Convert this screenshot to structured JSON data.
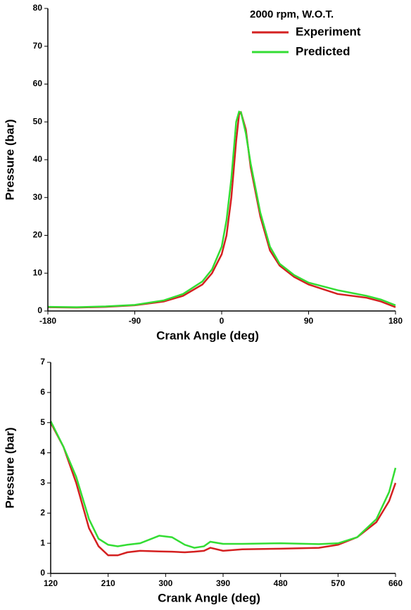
{
  "chart_data": [
    {
      "type": "line",
      "legend_title": "2000 rpm,  W.O.T.",
      "xlabel": "Crank Angle (deg)",
      "ylabel": "Pressure (bar)",
      "xlim": [
        -180,
        180
      ],
      "xticks": [
        -180,
        -90,
        0,
        90,
        180
      ],
      "ylim": [
        0,
        80
      ],
      "yticks": [
        0,
        10,
        20,
        30,
        40,
        50,
        60,
        70,
        80
      ],
      "x": [
        -180,
        -150,
        -120,
        -90,
        -60,
        -40,
        -20,
        -10,
        0,
        5,
        10,
        15,
        18,
        20,
        25,
        30,
        40,
        50,
        60,
        75,
        90,
        120,
        150,
        165,
        180
      ],
      "series": [
        {
          "name": "Experiment",
          "color": "#d42020",
          "values": [
            1,
            0.9,
            1.1,
            1.5,
            2.5,
            4,
            7,
            10,
            15,
            20,
            30,
            45,
            52,
            52.5,
            48,
            38,
            25,
            16,
            12,
            9,
            7,
            4.5,
            3.5,
            2.5,
            1
          ]
        },
        {
          "name": "Predicted",
          "color": "#33dd33",
          "values": [
            1.1,
            1.0,
            1.2,
            1.6,
            2.8,
            4.5,
            7.8,
            11,
            17,
            24,
            35,
            50,
            52.7,
            52.5,
            47,
            39,
            26,
            17,
            12.5,
            9.5,
            7.5,
            5.5,
            4,
            3,
            1.5
          ]
        }
      ]
    },
    {
      "type": "line",
      "xlabel": "Crank Angle (deg)",
      "ylabel": "Pressure (bar)",
      "xlim": [
        120,
        660
      ],
      "xticks": [
        120,
        210,
        300,
        390,
        480,
        570,
        660
      ],
      "ylim": [
        0,
        7
      ],
      "yticks": [
        0,
        1,
        2,
        3,
        4,
        5,
        6,
        7
      ],
      "x": [
        120,
        140,
        160,
        180,
        195,
        210,
        225,
        240,
        260,
        290,
        310,
        330,
        345,
        360,
        370,
        390,
        420,
        480,
        540,
        570,
        600,
        630,
        650,
        660
      ],
      "series": [
        {
          "name": "Experiment",
          "color": "#d42020",
          "values": [
            5,
            4.2,
            3,
            1.5,
            0.9,
            0.6,
            0.6,
            0.7,
            0.75,
            0.73,
            0.72,
            0.7,
            0.72,
            0.75,
            0.85,
            0.75,
            0.8,
            0.82,
            0.85,
            0.95,
            1.2,
            1.7,
            2.4,
            3.0
          ]
        },
        {
          "name": "Predicted",
          "color": "#33dd33",
          "values": [
            5.05,
            4.2,
            3.2,
            1.8,
            1.15,
            0.95,
            0.9,
            0.95,
            1.0,
            1.25,
            1.2,
            0.95,
            0.85,
            0.9,
            1.05,
            0.98,
            0.98,
            1.0,
            0.97,
            1.0,
            1.2,
            1.8,
            2.7,
            3.5
          ]
        }
      ]
    }
  ]
}
